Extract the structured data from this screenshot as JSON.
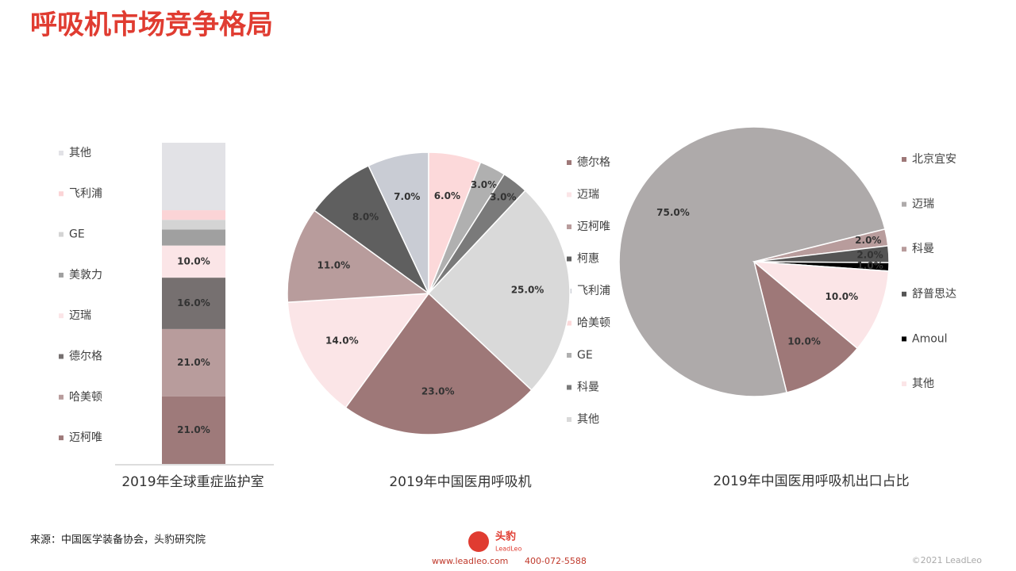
{
  "header": {
    "title": "呼吸机市场竞争格局"
  },
  "chart_data": [
    {
      "type": "bar",
      "stacked": true,
      "title": "2019年全球重症监护室",
      "categories": [
        null
      ],
      "series": [
        {
          "name": "迈柯唯",
          "color": "#9e7a7a",
          "values": [
            21
          ],
          "value_labels": [
            "21.0%"
          ]
        },
        {
          "name": "哈美顿",
          "color": "#b89c9c",
          "values": [
            21
          ],
          "value_labels": [
            "21.0%"
          ]
        },
        {
          "name": "德尔格",
          "color": "#767070",
          "values": [
            16
          ],
          "value_labels": [
            "16.0%"
          ]
        },
        {
          "name": "迈瑞",
          "color": "#fbe5e7",
          "values": [
            10
          ],
          "value_labels": [
            "10.0%"
          ]
        },
        {
          "name": "美敦力",
          "color": "#a0a0a0",
          "values": [
            5
          ],
          "value_labels": [
            null
          ]
        },
        {
          "name": "GE",
          "color": "#d4d4d4",
          "values": [
            3
          ],
          "value_labels": [
            null
          ]
        },
        {
          "name": "飞利浦",
          "color": "#fbd4d6",
          "values": [
            3
          ],
          "value_labels": [
            null
          ]
        },
        {
          "name": "其他",
          "color": "#e2e2e6",
          "values": [
            21
          ],
          "value_labels": [
            null
          ]
        }
      ]
    },
    {
      "type": "pie",
      "title": "2019年中国医用呼吸机",
      "categories": [
        "德尔格",
        "迈瑞",
        "迈柯唯",
        "柯惠",
        "飞利浦",
        "哈美顿",
        "GE",
        "科曼",
        "其他"
      ],
      "values": [
        23,
        14,
        11,
        8,
        7,
        6,
        3,
        3,
        25
      ],
      "value_labels": [
        "23.0%",
        "14.0%",
        "11.0%",
        "8.0%",
        "7.0%",
        "6.0%",
        "3.0%",
        "3.0%",
        "25.0%"
      ],
      "colors": [
        "#9e7878",
        "#fbe5e7",
        "#b89c9c",
        "#5f5f5f",
        "#c9ccd4",
        "#fcd9da",
        "#b0b0b0",
        "#7a7a7a",
        "#d9d9d9"
      ]
    },
    {
      "type": "pie",
      "title": "2019年中国医用呼吸机出口占比",
      "categories": [
        "北京宜安",
        "迈瑞",
        "科曼",
        "舒普思达",
        "Amoul",
        "其他"
      ],
      "values": [
        10,
        75,
        2,
        2,
        1,
        10
      ],
      "value_labels": [
        "10.0%",
        "75.0%",
        "2.0%",
        "2.0%",
        "1.0%",
        "10.0%"
      ],
      "colors": [
        "#9e7878",
        "#aeaaaa",
        "#b89c9c",
        "#555555",
        "#000000",
        "#fbe5e7"
      ]
    }
  ],
  "footer": {
    "source": "来源：中国医学装备协会，头豹研究院",
    "logo": "头豹",
    "logo_sub": "LeadLeo",
    "website": "www.leadleo.com",
    "phone": "400-072-5588",
    "copyright": "©2021 LeadLeo"
  }
}
